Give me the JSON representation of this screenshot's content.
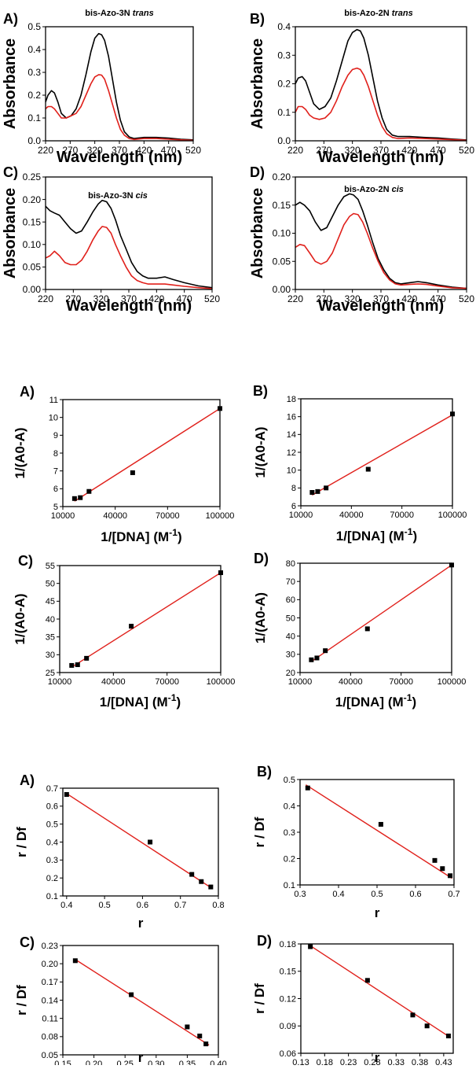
{
  "colors": {
    "black_series": "#000000",
    "red_series": "#e0201b",
    "axis": "#000000"
  },
  "chart_data": [
    {
      "type": "line",
      "panel": "A)",
      "title_main": "bis-Azo-3N",
      "title_italic": "trans",
      "xlabel": "Wavelength (nm)",
      "ylabel": "Absorbance",
      "xlim": [
        220,
        520
      ],
      "ylim": [
        0,
        0.5
      ],
      "xticks": [
        "220",
        "270",
        "320",
        "370",
        "420",
        "470",
        "520"
      ],
      "yticks": [
        "0.0",
        "0.1",
        "0.2",
        "0.3",
        "0.4",
        "0.5"
      ],
      "series": [
        {
          "color": "#000000",
          "x": [
            220,
            225,
            232,
            238,
            245,
            252,
            262,
            272,
            282,
            292,
            302,
            312,
            320,
            328,
            334,
            340,
            348,
            356,
            364,
            372,
            380,
            390,
            400,
            420,
            445,
            470,
            495,
            520
          ],
          "y": [
            0.17,
            0.2,
            0.22,
            0.21,
            0.17,
            0.12,
            0.1,
            0.11,
            0.14,
            0.2,
            0.29,
            0.39,
            0.45,
            0.47,
            0.465,
            0.44,
            0.37,
            0.27,
            0.17,
            0.09,
            0.04,
            0.017,
            0.01,
            0.015,
            0.015,
            0.012,
            0.007,
            0.004
          ]
        },
        {
          "color": "#e0201b",
          "x": [
            220,
            225,
            232,
            238,
            245,
            252,
            262,
            272,
            282,
            292,
            302,
            312,
            320,
            328,
            334,
            340,
            348,
            356,
            364,
            372,
            380,
            390,
            400,
            420,
            445,
            470,
            495,
            520
          ],
          "y": [
            0.14,
            0.15,
            0.15,
            0.14,
            0.12,
            0.1,
            0.1,
            0.11,
            0.12,
            0.15,
            0.2,
            0.25,
            0.28,
            0.29,
            0.288,
            0.27,
            0.22,
            0.16,
            0.1,
            0.05,
            0.025,
            0.01,
            0.006,
            0.01,
            0.01,
            0.007,
            0.004,
            0.002
          ]
        }
      ]
    },
    {
      "type": "line",
      "panel": "B)",
      "title_main": "bis-Azo-2N",
      "title_italic": "trans",
      "xlabel": "Wavelength (nm)",
      "ylabel": "Absorbance",
      "xlim": [
        220,
        520
      ],
      "ylim": [
        0,
        0.4
      ],
      "xticks": [
        "220",
        "270",
        "320",
        "370",
        "420",
        "470",
        "520"
      ],
      "yticks": [
        "0.0",
        "0.1",
        "0.2",
        "0.3",
        "0.4"
      ],
      "series": [
        {
          "color": "#000000",
          "x": [
            220,
            225,
            232,
            238,
            245,
            252,
            262,
            272,
            282,
            292,
            302,
            312,
            320,
            328,
            334,
            340,
            348,
            356,
            364,
            372,
            380,
            390,
            400,
            420,
            445,
            470,
            495,
            520
          ],
          "y": [
            0.2,
            0.22,
            0.225,
            0.21,
            0.17,
            0.13,
            0.11,
            0.12,
            0.15,
            0.21,
            0.28,
            0.35,
            0.38,
            0.39,
            0.385,
            0.36,
            0.3,
            0.22,
            0.14,
            0.08,
            0.04,
            0.02,
            0.015,
            0.015,
            0.012,
            0.01,
            0.006,
            0.003
          ]
        },
        {
          "color": "#e0201b",
          "x": [
            220,
            225,
            232,
            238,
            245,
            252,
            262,
            272,
            282,
            292,
            302,
            312,
            320,
            328,
            334,
            340,
            348,
            356,
            364,
            372,
            380,
            390,
            400,
            420,
            445,
            470,
            495,
            520
          ],
          "y": [
            0.1,
            0.12,
            0.12,
            0.11,
            0.09,
            0.08,
            0.075,
            0.08,
            0.1,
            0.14,
            0.19,
            0.23,
            0.25,
            0.255,
            0.25,
            0.23,
            0.19,
            0.14,
            0.09,
            0.05,
            0.025,
            0.012,
            0.008,
            0.01,
            0.008,
            0.006,
            0.004,
            0.002
          ]
        }
      ]
    },
    {
      "type": "line",
      "panel": "C)",
      "title_main": "bis-Azo-3N",
      "title_italic": "cis",
      "xlabel": "Wavelength (nm)",
      "ylabel": "Absorbance",
      "xlim": [
        220,
        520
      ],
      "ylim": [
        0,
        0.25
      ],
      "xticks": [
        "220",
        "270",
        "320",
        "370",
        "420",
        "470",
        "520"
      ],
      "yticks": [
        "0.00",
        "0.05",
        "0.10",
        "0.15",
        "0.20",
        "0.25"
      ],
      "series": [
        {
          "color": "#000000",
          "x": [
            220,
            228,
            236,
            245,
            255,
            265,
            275,
            285,
            295,
            305,
            315,
            322,
            330,
            338,
            346,
            355,
            365,
            375,
            385,
            395,
            405,
            420,
            435,
            450,
            470,
            495,
            520
          ],
          "y": [
            0.185,
            0.175,
            0.17,
            0.165,
            0.15,
            0.135,
            0.125,
            0.13,
            0.15,
            0.172,
            0.19,
            0.198,
            0.195,
            0.18,
            0.155,
            0.12,
            0.09,
            0.06,
            0.04,
            0.03,
            0.025,
            0.025,
            0.028,
            0.022,
            0.015,
            0.008,
            0.004
          ]
        },
        {
          "color": "#e0201b",
          "x": [
            220,
            228,
            236,
            245,
            255,
            265,
            275,
            285,
            295,
            305,
            315,
            322,
            330,
            338,
            346,
            355,
            365,
            375,
            385,
            395,
            405,
            420,
            435,
            450,
            470,
            495,
            520
          ],
          "y": [
            0.07,
            0.075,
            0.085,
            0.075,
            0.06,
            0.055,
            0.055,
            0.065,
            0.085,
            0.11,
            0.13,
            0.14,
            0.138,
            0.125,
            0.1,
            0.075,
            0.05,
            0.03,
            0.02,
            0.015,
            0.012,
            0.012,
            0.012,
            0.01,
            0.007,
            0.004,
            0.002
          ]
        }
      ]
    },
    {
      "type": "line",
      "panel": "D)",
      "title_main": "bis-Azo-2N",
      "title_italic": "cis",
      "xlabel": "Wavelength (nm)",
      "ylabel": "Absorbance",
      "xlim": [
        220,
        520
      ],
      "ylim": [
        0,
        0.2
      ],
      "xticks": [
        "220",
        "270",
        "320",
        "370",
        "420",
        "470",
        "520"
      ],
      "yticks": [
        "0.00",
        "0.05",
        "0.10",
        "0.15",
        "0.20"
      ],
      "series": [
        {
          "color": "#000000",
          "x": [
            220,
            228,
            236,
            245,
            255,
            265,
            275,
            285,
            295,
            305,
            315,
            322,
            330,
            338,
            346,
            355,
            365,
            375,
            385,
            395,
            405,
            420,
            435,
            450,
            470,
            495,
            520
          ],
          "y": [
            0.15,
            0.155,
            0.15,
            0.14,
            0.12,
            0.105,
            0.11,
            0.13,
            0.15,
            0.165,
            0.17,
            0.168,
            0.16,
            0.14,
            0.115,
            0.085,
            0.055,
            0.035,
            0.02,
            0.012,
            0.01,
            0.012,
            0.014,
            0.012,
            0.008,
            0.004,
            0.002
          ]
        },
        {
          "color": "#e0201b",
          "x": [
            220,
            228,
            236,
            245,
            255,
            265,
            275,
            285,
            295,
            305,
            315,
            322,
            330,
            338,
            346,
            355,
            365,
            375,
            385,
            395,
            405,
            420,
            435,
            450,
            470,
            495,
            520
          ],
          "y": [
            0.075,
            0.08,
            0.078,
            0.065,
            0.05,
            0.045,
            0.05,
            0.065,
            0.09,
            0.115,
            0.13,
            0.135,
            0.133,
            0.12,
            0.1,
            0.075,
            0.05,
            0.03,
            0.017,
            0.01,
            0.008,
            0.009,
            0.01,
            0.009,
            0.006,
            0.003,
            0.002
          ]
        }
      ]
    },
    {
      "type": "scatter",
      "panel": "A)",
      "xlabel_main": "1/[DNA] (M",
      "xlabel_sup": "-1",
      "xlabel_end": ")",
      "ylabel": "1/(A0-A)",
      "xlim": [
        10000,
        100000
      ],
      "ylim": [
        5,
        11
      ],
      "xticks": [
        "10000",
        "40000",
        "70000",
        "100000"
      ],
      "xtick_values": [
        10000,
        40000,
        70000,
        100000
      ],
      "yticks": [
        "5",
        "6",
        "7",
        "8",
        "9",
        "10",
        "11"
      ],
      "points": {
        "x": [
          16700,
          20000,
          25000,
          50000,
          100000
        ],
        "y": [
          5.45,
          5.5,
          5.85,
          6.9,
          10.5
        ]
      },
      "fit": {
        "x": [
          16700,
          100000
        ],
        "y": [
          5.3,
          10.5
        ]
      }
    },
    {
      "type": "scatter",
      "panel": "B)",
      "xlabel_main": "1/[DNA] (M",
      "xlabel_sup": "-1",
      "xlabel_end": ")",
      "ylabel": "1/(A0-A)",
      "xlim": [
        10000,
        100000
      ],
      "ylim": [
        6,
        18
      ],
      "xticks": [
        "10000",
        "40000",
        "70000",
        "100000"
      ],
      "xtick_values": [
        10000,
        40000,
        70000,
        100000
      ],
      "yticks": [
        "6",
        "8",
        "10",
        "12",
        "14",
        "16",
        "18"
      ],
      "points": {
        "x": [
          16700,
          20000,
          25000,
          50000,
          100000
        ],
        "y": [
          7.5,
          7.6,
          8.0,
          10.1,
          16.3
        ]
      },
      "fit": {
        "x": [
          16700,
          100000
        ],
        "y": [
          7.2,
          16.2
        ]
      }
    },
    {
      "type": "scatter",
      "panel": "C)",
      "xlabel_main": "1/[DNA] (M",
      "xlabel_sup": "-1",
      "xlabel_end": ")",
      "ylabel": "1/(A0-A)",
      "xlim": [
        10000,
        100000
      ],
      "ylim": [
        25,
        55
      ],
      "xticks": [
        "10000",
        "40000",
        "70000",
        "100000"
      ],
      "xtick_values": [
        10000,
        40000,
        70000,
        100000
      ],
      "yticks": [
        "25",
        "30",
        "35",
        "40",
        "45",
        "50",
        "55"
      ],
      "points": {
        "x": [
          16700,
          20000,
          25000,
          50000,
          100000
        ],
        "y": [
          27,
          27.2,
          29,
          38,
          53
        ]
      },
      "fit": {
        "x": [
          16700,
          100000
        ],
        "y": [
          26.5,
          53
        ]
      }
    },
    {
      "type": "scatter",
      "panel": "D)",
      "xlabel_main": "1/[DNA] (M",
      "xlabel_sup": "-1",
      "xlabel_end": ")",
      "ylabel": "1/(A0-A)",
      "xlim": [
        10000,
        100000
      ],
      "ylim": [
        20,
        80
      ],
      "xticks": [
        "10000",
        "40000",
        "70000",
        "100000"
      ],
      "xtick_values": [
        10000,
        40000,
        70000,
        100000
      ],
      "yticks": [
        "20",
        "30",
        "40",
        "50",
        "60",
        "70",
        "80"
      ],
      "points": {
        "x": [
          16700,
          20000,
          25000,
          50000,
          100000
        ],
        "y": [
          27,
          28,
          32,
          44,
          79
        ]
      },
      "fit": {
        "x": [
          16700,
          100000
        ],
        "y": [
          26,
          79
        ]
      }
    },
    {
      "type": "scatter",
      "panel": "A)",
      "xlabel": "r",
      "ylabel": "r / Df",
      "xlim": [
        0.39,
        0.8
      ],
      "ylim": [
        0.1,
        0.7
      ],
      "xticks": [
        "0.4",
        "0.5",
        "0.6",
        "0.7",
        "0.8"
      ],
      "xtick_values": [
        0.4,
        0.5,
        0.6,
        0.7,
        0.8
      ],
      "yticks": [
        "0.1",
        "0.2",
        "0.3",
        "0.4",
        "0.5",
        "0.6",
        "0.7"
      ],
      "points": {
        "x": [
          0.4,
          0.62,
          0.73,
          0.755,
          0.78
        ],
        "y": [
          0.665,
          0.4,
          0.22,
          0.18,
          0.15
        ]
      },
      "fit": {
        "x": [
          0.4,
          0.785
        ],
        "y": [
          0.67,
          0.14
        ]
      }
    },
    {
      "type": "scatter",
      "panel": "B)",
      "xlabel": "r",
      "ylabel": "r / Df",
      "xlim": [
        0.3,
        0.7
      ],
      "ylim": [
        0.1,
        0.5
      ],
      "xticks": [
        "0.3",
        "0.4",
        "0.5",
        "0.6",
        "0.7"
      ],
      "xtick_values": [
        0.3,
        0.4,
        0.5,
        0.6,
        0.7
      ],
      "yticks": [
        "0.1",
        "0.2",
        "0.3",
        "0.4",
        "0.5"
      ],
      "points": {
        "x": [
          0.32,
          0.51,
          0.65,
          0.67,
          0.69
        ],
        "y": [
          0.468,
          0.33,
          0.193,
          0.162,
          0.135
        ]
      },
      "fit": {
        "x": [
          0.315,
          0.695
        ],
        "y": [
          0.48,
          0.125
        ]
      }
    },
    {
      "type": "scatter",
      "panel": "C)",
      "xlabel": "r",
      "ylabel": "r / Df",
      "xlim": [
        0.15,
        0.4
      ],
      "ylim": [
        0.05,
        0.23
      ],
      "xticks": [
        "0.15",
        "0.20",
        "0.25",
        "0.30",
        "0.35",
        "0.40"
      ],
      "xtick_values": [
        0.15,
        0.2,
        0.25,
        0.3,
        0.35,
        0.4
      ],
      "yticks": [
        "0.05",
        "0.08",
        "0.11",
        "0.14",
        "0.17",
        "0.20",
        "0.23"
      ],
      "ytick_values": [
        0.05,
        0.08,
        0.11,
        0.14,
        0.17,
        0.2,
        0.23
      ],
      "points": {
        "x": [
          0.17,
          0.26,
          0.35,
          0.37,
          0.38
        ],
        "y": [
          0.205,
          0.149,
          0.096,
          0.081,
          0.068
        ]
      },
      "fit": {
        "x": [
          0.17,
          0.385
        ],
        "y": [
          0.207,
          0.066
        ]
      }
    },
    {
      "type": "scatter",
      "panel": "D)",
      "xlabel": "r",
      "ylabel": "r / Df",
      "xlim": [
        0.13,
        0.45
      ],
      "ylim": [
        0.06,
        0.18
      ],
      "xticks": [
        "0.13",
        "0.18",
        "0.23",
        "0.28",
        "0.33",
        "0.38",
        "0.43"
      ],
      "xtick_values": [
        0.13,
        0.18,
        0.23,
        0.28,
        0.33,
        0.38,
        0.43
      ],
      "yticks": [
        "0.06",
        "0.09",
        "0.12",
        "0.15",
        "0.18"
      ],
      "ytick_values": [
        0.06,
        0.09,
        0.12,
        0.15,
        0.18
      ],
      "points": {
        "x": [
          0.15,
          0.27,
          0.365,
          0.395,
          0.44
        ],
        "y": [
          0.177,
          0.14,
          0.102,
          0.09,
          0.079
        ]
      },
      "fit": {
        "x": [
          0.15,
          0.445
        ],
        "y": [
          0.178,
          0.077
        ]
      }
    }
  ]
}
